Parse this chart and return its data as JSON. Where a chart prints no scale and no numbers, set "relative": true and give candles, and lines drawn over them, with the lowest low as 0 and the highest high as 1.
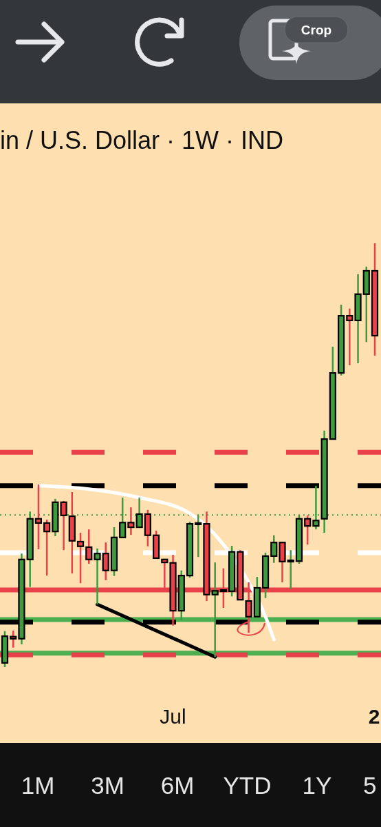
{
  "chart_data": {
    "type": "candlestick",
    "title": "in / U.S. Dollar · 1W · IND",
    "relative": true,
    "categories": [
      null,
      null,
      null,
      null,
      null,
      null,
      null,
      null,
      null,
      null,
      null,
      null,
      null,
      null,
      null,
      null,
      null,
      null,
      null,
      null,
      "Jul",
      null,
      null,
      null,
      null,
      null,
      null,
      null,
      null,
      null,
      null,
      null,
      null,
      null,
      null,
      null,
      null,
      null,
      null,
      null,
      null,
      null,
      null,
      null,
      "2"
    ],
    "ohlc": [
      [
        0.01,
        0.085,
        0,
        0.073
      ],
      [
        0.072,
        0.086,
        0.046,
        0.067
      ],
      [
        0.067,
        0.268,
        0.054,
        0.254
      ],
      [
        0.254,
        0.367,
        0.189,
        0.35
      ],
      [
        0.35,
        0.431,
        0.278,
        0.34
      ],
      [
        0.34,
        0.348,
        0.216,
        0.32
      ],
      [
        0.32,
        0.397,
        0.309,
        0.389
      ],
      [
        0.389,
        0.392,
        0.276,
        0.358
      ],
      [
        0.356,
        0.413,
        0.221,
        0.298
      ],
      [
        0.296,
        0.317,
        0.198,
        0.285
      ],
      [
        0.283,
        0.325,
        0.244,
        0.254
      ],
      [
        0.254,
        0.28,
        0.148,
        0.268
      ],
      [
        0.268,
        0.294,
        0.205,
        0.228
      ],
      [
        0.228,
        0.33,
        0.215,
        0.306
      ],
      [
        0.306,
        0.4,
        0.306,
        0.341
      ],
      [
        0.341,
        0.377,
        0.312,
        0.33
      ],
      [
        0.33,
        0.4,
        0.33,
        0.361
      ],
      [
        0.361,
        0.371,
        0.285,
        0.311
      ],
      [
        0.311,
        0.322,
        0.257,
        0.257
      ],
      [
        0.254,
        0.254,
        0.184,
        0.247
      ],
      [
        0.246,
        0.265,
        0.098,
        0.133
      ],
      [
        0.133,
        0.228,
        0.111,
        0.216
      ],
      [
        0.216,
        0.343,
        0.211,
        0.338
      ],
      [
        0.337,
        0.358,
        0.26,
        0.34
      ],
      [
        0.338,
        0.367,
        0.156,
        0.171
      ],
      [
        0.171,
        0.247,
        0.024,
        0.18
      ],
      [
        0.182,
        0.233,
        0.14,
        0.179
      ],
      [
        0.179,
        0.286,
        0.167,
        0.272
      ],
      [
        0.272,
        0.276,
        0.159,
        0.159
      ],
      [
        0.156,
        0.2,
        0.081,
        0.119
      ],
      [
        0.119,
        0.213,
        0.119,
        0.187
      ],
      [
        0.187,
        0.27,
        0.163,
        0.262
      ],
      [
        0.262,
        0.311,
        0.246,
        0.294
      ],
      [
        0.294,
        0.296,
        0.2,
        0.249
      ],
      [
        0.249,
        0.276,
        0.184,
        0.252
      ],
      [
        0.25,
        0.359,
        0.244,
        0.35
      ],
      [
        0.35,
        0.358,
        0.289,
        0.333
      ],
      [
        0.333,
        0.428,
        0.325,
        0.346
      ],
      [
        0.35,
        0.558,
        0.317,
        0.538
      ],
      [
        0.538,
        0.756,
        0.537,
        0.694
      ],
      [
        0.694,
        0.855,
        0.688,
        0.829
      ],
      [
        0.829,
        0.846,
        0.712,
        0.818
      ],
      [
        0.818,
        0.927,
        0.717,
        0.88
      ],
      [
        0.88,
        0.945,
        0.767,
        0.935
      ],
      [
        0.935,
        1,
        0.735,
        0.782
      ]
    ],
    "series": [
      {
        "type": "line",
        "color": "#ffffff",
        "values": [
          null,
          null,
          null,
          null,
          0.428,
          null,
          null,
          null,
          null,
          null,
          0.42,
          null,
          null,
          null,
          null,
          null,
          0.4,
          null,
          null,
          null,
          null,
          null,
          0.363,
          null,
          null,
          null,
          0.289,
          null,
          null,
          0.2,
          null,
          0.119,
          0.065,
          null,
          null,
          null,
          null,
          null,
          null,
          null,
          null,
          null,
          null,
          null,
          null
        ]
      },
      {
        "type": "line",
        "color": "#000000",
        "values": [
          null,
          null,
          null,
          null,
          null,
          null,
          null,
          null,
          null,
          null,
          null,
          0.148,
          null,
          null,
          null,
          null,
          null,
          null,
          null,
          null,
          null,
          null,
          null,
          null,
          null,
          0.024,
          null,
          null,
          null,
          null,
          null,
          null,
          null,
          null,
          null,
          null,
          null,
          null,
          null,
          null,
          null,
          null,
          null,
          null,
          null
        ]
      }
    ],
    "ref_lines": [
      {
        "axis": "y",
        "value": 0.507,
        "color": "#e8414a",
        "line_style": "dashed"
      },
      {
        "axis": "y",
        "value": 0.428,
        "color": "#000000",
        "line_style": "dashed"
      },
      {
        "axis": "y",
        "value": 0.359,
        "color": "#3f9a3f",
        "line_style": "dotted"
      },
      {
        "axis": "y",
        "value": 0.27,
        "color": "#ffffff",
        "line_style": "dashed"
      },
      {
        "axis": "y",
        "value": 0.182,
        "color": "#e8414a",
        "line_style": "solid"
      },
      {
        "axis": "y",
        "value": 0.112,
        "color": "#4caf50",
        "line_style": "solid"
      },
      {
        "axis": "y",
        "value": 0.106,
        "color": "#000000",
        "line_style": "dashed"
      },
      {
        "axis": "y",
        "value": 0.033,
        "color": "#4caf50",
        "line_style": "solid"
      },
      {
        "axis": "y",
        "value": 0.029,
        "color": "#e8414a",
        "line_style": "dashed"
      }
    ],
    "annotations": [
      "Crop",
      "1M",
      "3M",
      "6M",
      "YTD",
      "1Y",
      "5"
    ]
  }
}
